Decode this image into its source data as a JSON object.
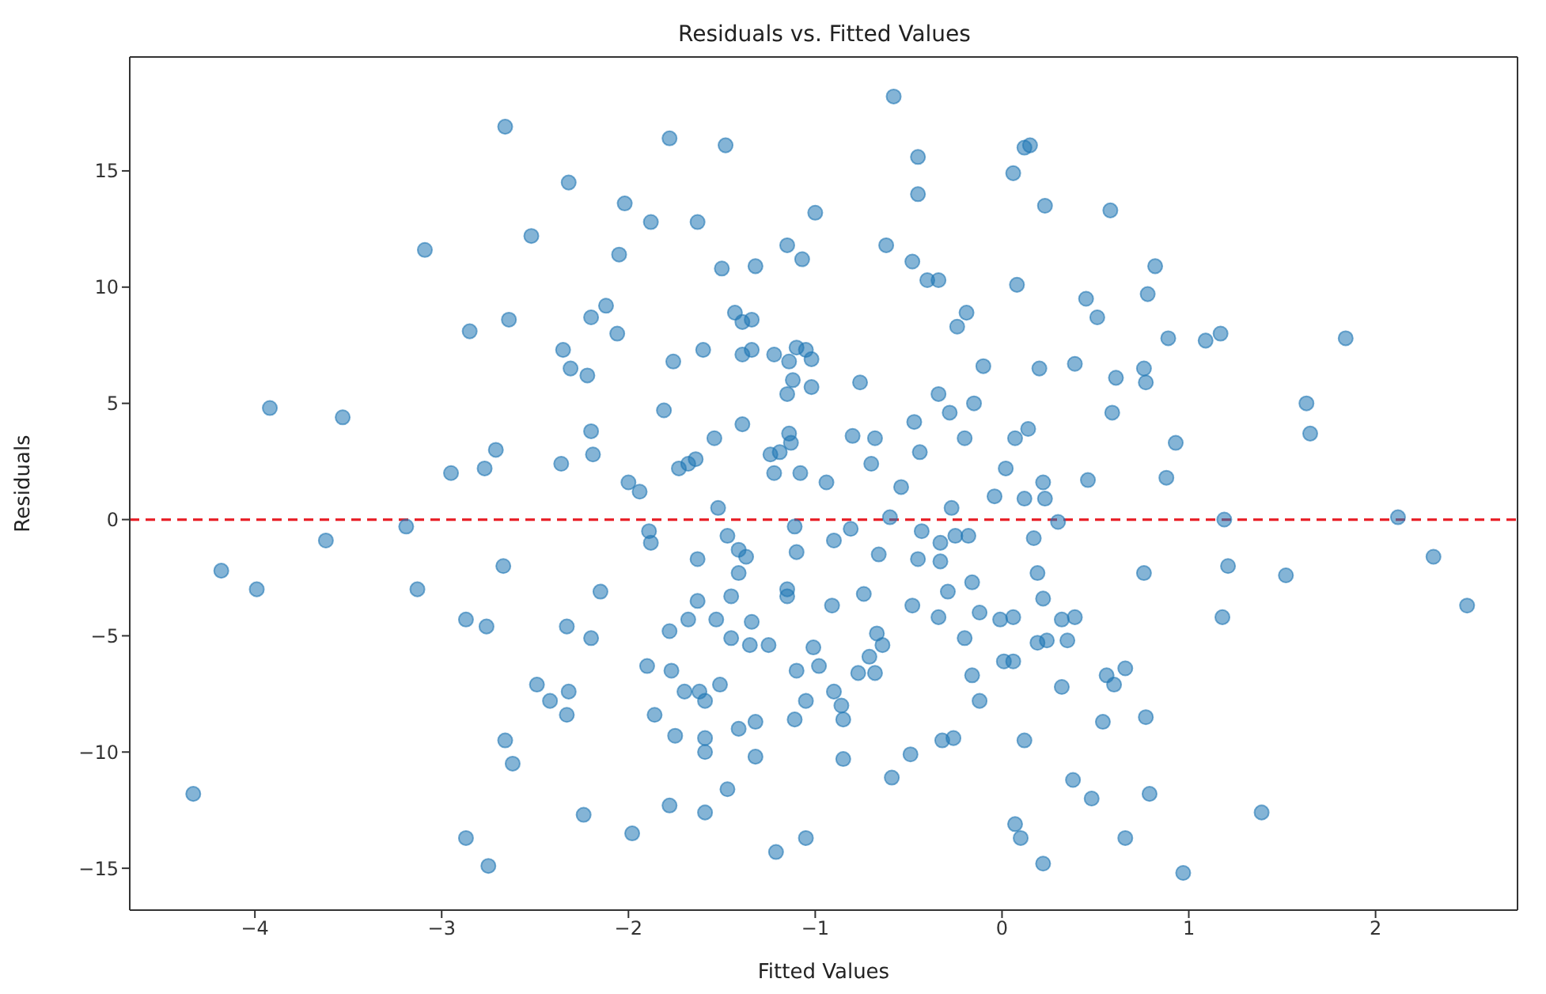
{
  "chart_data": {
    "type": "scatter",
    "title": "Residuals vs. Fitted Values",
    "xlabel": "Fitted Values",
    "ylabel": "Residuals",
    "marker": "circle",
    "grid": false,
    "legend": false,
    "xlim": [
      -4.67,
      2.76
    ],
    "ylim": [
      -16.8,
      19.9
    ],
    "xticks": [
      {
        "value": -4,
        "label": "−4"
      },
      {
        "value": -3,
        "label": "−3"
      },
      {
        "value": -2,
        "label": "−2"
      },
      {
        "value": -1,
        "label": "−1"
      },
      0,
      1,
      2
    ],
    "yticks": [
      {
        "value": -15,
        "label": "−15"
      },
      {
        "value": -10,
        "label": "−10"
      },
      {
        "value": -5,
        "label": "−5"
      },
      0,
      5,
      10,
      15
    ],
    "ref_lines": [
      {
        "axis": "y",
        "value": 0,
        "color": "#e8232a",
        "line_style": "dashed"
      }
    ],
    "series": [
      {
        "color": "#1f77b4",
        "x": [
          -4.33,
          -4.18,
          -3.99,
          -3.62,
          -3.19,
          -3.13,
          -2.67,
          -2.87,
          -2.76,
          -2.33,
          -2.49,
          -2.42,
          -2.32,
          -2.33,
          -2.66,
          -2.62,
          -2.24,
          -2.87,
          -2.75,
          -2.66,
          -2.32,
          -2.52,
          -3.09,
          -2.64,
          -2.85,
          -2.2,
          -2.35,
          -2.31,
          -2.22,
          -2.2,
          -2.71,
          -2.77,
          -2.95,
          -2.36,
          -3.92,
          -3.53,
          -2.19,
          -0.58,
          -1.78,
          -1.48,
          -0.45,
          -0.45,
          0.15,
          0.12,
          0.06,
          0.23,
          -2.02,
          -1.88,
          -1.63,
          -1.0,
          -2.05,
          -1.5,
          -1.32,
          -1.15,
          -1.07,
          -0.62,
          -0.48,
          -0.4,
          -0.34,
          0.08,
          -2.12,
          -2.06,
          -1.43,
          -1.39,
          -1.34,
          -0.19,
          -0.24,
          -1.6,
          -1.76,
          -1.39,
          -1.34,
          -1.22,
          -1.1,
          -1.05,
          -1.02,
          -1.14,
          -0.1,
          0.2,
          -0.76,
          -1.12,
          -1.15,
          -1.02,
          -0.34,
          -0.15,
          -0.28,
          -1.81,
          -1.39,
          -1.54,
          -0.47,
          -0.44,
          -0.8,
          -0.68,
          -0.2,
          0.07,
          0.14,
          0.02,
          -1.14,
          -1.13,
          -1.24,
          -1.19,
          -1.73,
          -1.68,
          -1.64,
          -1.22,
          -1.08,
          -0.7,
          -0.94,
          -2.0,
          -1.94,
          -0.54,
          0.22,
          0.58,
          0.82,
          0.78,
          0.45,
          0.51,
          0.89,
          1.09,
          1.17,
          1.84,
          0.39,
          0.61,
          0.76,
          0.77,
          1.63,
          1.65,
          0.59,
          0.93,
          0.88,
          0.46,
          -1.52,
          -0.27,
          -0.04,
          0.12,
          -1.89,
          -1.88,
          -1.47,
          -1.41,
          -1.37,
          -1.41,
          -1.11,
          -1.1,
          -0.9,
          -0.81,
          -0.6,
          -0.66,
          -0.43,
          -0.33,
          -0.25,
          -0.18,
          -0.45,
          -0.33,
          0.17,
          -1.63,
          -2.15,
          -1.63,
          -1.45,
          -1.15,
          -1.15,
          -0.91,
          -0.74,
          -0.29,
          -0.16,
          0.19,
          0.22,
          -0.48,
          -0.34,
          -0.12,
          -0.01,
          0.06,
          -1.68,
          -1.53,
          -1.34,
          -1.78,
          -1.45,
          -1.35,
          -1.25,
          -2.2,
          -1.01,
          -0.67,
          -0.64,
          -0.2,
          -0.71,
          -0.77,
          -0.68,
          -1.1,
          -0.98,
          0.01,
          0.06,
          0.19,
          -0.16,
          -0.12,
          -1.9,
          -1.77,
          -1.7,
          -1.62,
          -1.59,
          -1.51,
          -1.86,
          -1.75,
          -1.59,
          -1.59,
          -1.41,
          -1.32,
          -1.32,
          -1.11,
          -1.05,
          -0.9,
          -0.86,
          -0.85,
          -0.85,
          -0.59,
          -0.49,
          -0.32,
          -0.26,
          0.12,
          -1.98,
          -1.78,
          -1.59,
          -1.47,
          -1.21,
          -1.05,
          0.07,
          0.1,
          0.22,
          0.23,
          0.3,
          1.19,
          2.12,
          0.76,
          1.21,
          1.52,
          2.31,
          2.49,
          1.18,
          0.32,
          0.39,
          0.24,
          0.35,
          0.66,
          0.56,
          0.6,
          0.32,
          0.77,
          0.54,
          0.38,
          0.48,
          0.79,
          1.39,
          0.66,
          0.97
        ],
        "values": [
          -11.8,
          -2.2,
          -3.0,
          -0.9,
          -0.3,
          -3.0,
          -2.0,
          -4.3,
          -4.6,
          -4.6,
          -7.1,
          -7.8,
          -7.4,
          -8.4,
          -9.5,
          -10.5,
          -12.7,
          -13.7,
          -14.9,
          16.9,
          14.5,
          12.2,
          11.6,
          8.6,
          8.1,
          8.7,
          7.3,
          6.5,
          6.2,
          3.8,
          3.0,
          2.2,
          2.0,
          2.4,
          4.8,
          4.4,
          2.8,
          18.2,
          16.4,
          16.1,
          15.6,
          14.0,
          16.1,
          16.0,
          14.9,
          13.5,
          13.6,
          12.8,
          12.8,
          13.2,
          11.4,
          10.8,
          10.9,
          11.8,
          11.2,
          11.8,
          11.1,
          10.3,
          10.3,
          10.1,
          9.2,
          8.0,
          8.9,
          8.5,
          8.6,
          8.9,
          8.3,
          7.3,
          6.8,
          7.1,
          7.3,
          7.1,
          7.4,
          7.3,
          6.9,
          6.8,
          6.6,
          6.5,
          5.9,
          6.0,
          5.4,
          5.7,
          5.4,
          5.0,
          4.6,
          4.7,
          4.1,
          3.5,
          4.2,
          2.9,
          3.6,
          3.5,
          3.5,
          3.5,
          3.9,
          2.2,
          3.7,
          3.3,
          2.8,
          2.9,
          2.2,
          2.4,
          2.6,
          2.0,
          2.0,
          2.4,
          1.6,
          1.6,
          1.2,
          1.4,
          1.6,
          13.3,
          10.9,
          9.7,
          9.5,
          8.7,
          7.8,
          7.7,
          8.0,
          7.8,
          6.7,
          6.1,
          6.5,
          5.9,
          5.0,
          3.7,
          4.6,
          3.3,
          1.8,
          1.7,
          0.5,
          0.5,
          1.0,
          0.9,
          -0.5,
          -1.0,
          -0.7,
          -1.3,
          -1.6,
          -2.3,
          -0.3,
          -1.4,
          -0.9,
          -0.4,
          0.1,
          -1.5,
          -0.5,
          -1.0,
          -0.7,
          -0.7,
          -1.7,
          -1.8,
          -0.8,
          -1.7,
          -3.1,
          -3.5,
          -3.3,
          -3.0,
          -3.3,
          -3.7,
          -3.2,
          -3.1,
          -2.7,
          -2.3,
          -3.4,
          -3.7,
          -4.2,
          -4.0,
          -4.3,
          -4.2,
          -4.3,
          -4.3,
          -4.4,
          -4.8,
          -5.1,
          -5.4,
          -5.4,
          -5.1,
          -5.5,
          -4.9,
          -5.4,
          -5.1,
          -5.9,
          -6.6,
          -6.6,
          -6.5,
          -6.3,
          -6.1,
          -6.1,
          -5.3,
          -6.7,
          -7.8,
          -6.3,
          -6.5,
          -7.4,
          -7.4,
          -7.8,
          -7.1,
          -8.4,
          -9.3,
          -9.4,
          -10.0,
          -9.0,
          -8.7,
          -10.2,
          -8.6,
          -7.8,
          -7.4,
          -8.0,
          -8.6,
          -10.3,
          -11.1,
          -10.1,
          -9.5,
          -9.4,
          -9.5,
          -13.5,
          -12.3,
          -12.6,
          -11.6,
          -14.3,
          -13.7,
          -13.1,
          -13.7,
          -14.8,
          0.9,
          -0.1,
          0.0,
          0.1,
          -2.3,
          -2.0,
          -2.4,
          -1.6,
          -3.7,
          -4.2,
          -4.3,
          -4.2,
          -5.2,
          -5.2,
          -6.4,
          -6.7,
          -7.1,
          -7.2,
          -8.5,
          -8.7,
          -11.2,
          -12.0,
          -11.8,
          -12.6,
          -13.7,
          -15.2
        ]
      }
    ]
  }
}
